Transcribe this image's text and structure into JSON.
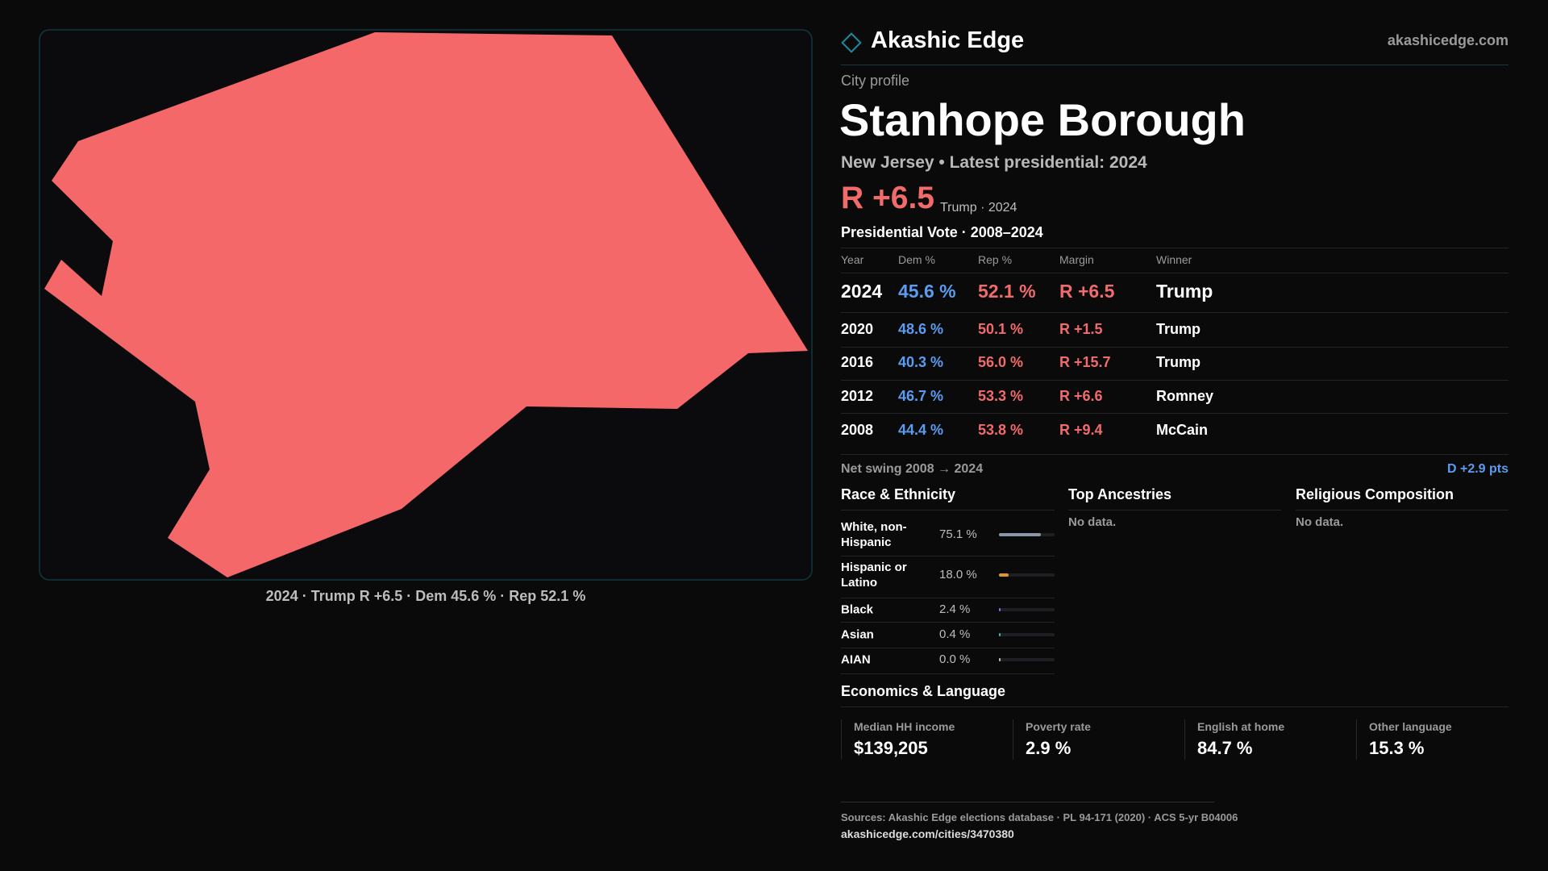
{
  "map": {
    "caption": "2024 · Trump R +6.5 · Dem 45.6 % · Rep 52.1 %"
  },
  "header": {
    "brand": "Akashic Edge",
    "site": "akashicedge.com"
  },
  "profile": {
    "kicker": "City profile",
    "title": "Stanhope Borough",
    "subtitle": "New Jersey • Latest presidential: 2024",
    "margin": "R +6.5",
    "margin_note": "Trump · 2024"
  },
  "vote_table": {
    "title": "Presidential Vote · 2008–2024",
    "columns": [
      "Year",
      "Dem %",
      "Rep %",
      "Margin",
      "Winner"
    ],
    "rows": [
      [
        "2024",
        "45.6 %",
        "52.1 %",
        "R +6.5",
        "Trump"
      ],
      [
        "2020",
        "48.6 %",
        "50.1 %",
        "R +1.5",
        "Trump"
      ],
      [
        "2016",
        "40.3 %",
        "56.0 %",
        "R +15.7",
        "Trump"
      ],
      [
        "2012",
        "46.7 %",
        "53.3 %",
        "R +6.6",
        "Romney"
      ],
      [
        "2008",
        "44.4 %",
        "53.8 %",
        "R +9.4",
        "McCain"
      ]
    ]
  },
  "swing": {
    "label": "Net swing 2008 → 2024",
    "value": "D +2.9 pts"
  },
  "race": {
    "title": "Race & Ethnicity",
    "rows": [
      {
        "label": "White, non-Hispanic",
        "value": 75.1,
        "value_label": "75.1 %",
        "color": "#8d96a8"
      },
      {
        "label": "Hispanic or Latino",
        "value": 18.0,
        "value_label": "18.0 %",
        "color": "#e0962a"
      },
      {
        "label": "Black",
        "value": 2.4,
        "value_label": "2.4 %",
        "color": "#8a6cf0"
      },
      {
        "label": "Asian",
        "value": 0.4,
        "value_label": "0.4 %",
        "color": "#3fb8a8"
      },
      {
        "label": "AIAN",
        "value": 0.0,
        "value_label": "0.0 %",
        "color": "#c0c0c0"
      }
    ]
  },
  "ancestries": {
    "title": "Top Ancestries",
    "note": "No data."
  },
  "religion": {
    "title": "Religious Composition",
    "note": "No data."
  },
  "economics": {
    "title": "Economics & Language",
    "stats": [
      {
        "label": "Median HH income",
        "value": "$139,205"
      },
      {
        "label": "Poverty rate",
        "value": "2.9 %"
      },
      {
        "label": "English at home",
        "value": "84.7 %"
      },
      {
        "label": "Other language",
        "value": "15.3 %"
      }
    ]
  },
  "footer": {
    "sources": "Sources: Akashic Edge elections database · PL 94-171 (2020) · ACS 5-yr B04006",
    "url": "akashicedge.com/cities/3470380"
  }
}
